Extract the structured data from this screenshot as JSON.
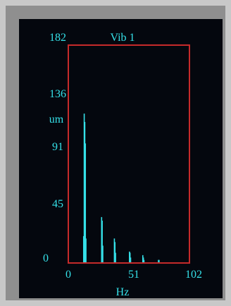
{
  "chart_data": {
    "type": "bar",
    "title": "Vib 1",
    "xlabel": "Hz",
    "ylabel": "um",
    "xlim": [
      0,
      102
    ],
    "ylim": [
      0,
      182
    ],
    "x_ticks": [
      "0",
      "51",
      "102"
    ],
    "y_ticks": [
      "182",
      "136",
      "91",
      "45",
      "0"
    ],
    "grid": false,
    "frame_color": "#c62a2a",
    "series_color": "#35e0e8",
    "series": [
      {
        "x": [
          12.0,
          12.5,
          13.0,
          13.5,
          14.0,
          27.5,
          28.0,
          28.5,
          38.5,
          39.0,
          39.5,
          51.5,
          52.0,
          52.5,
          63.0,
          63.5,
          64.0,
          76.5,
          77.0
        ],
        "values": [
          22,
          125,
          118,
          100,
          20,
          38,
          35,
          14,
          20,
          17,
          8,
          9,
          8,
          4,
          6,
          4,
          2,
          2,
          2
        ]
      }
    ]
  }
}
